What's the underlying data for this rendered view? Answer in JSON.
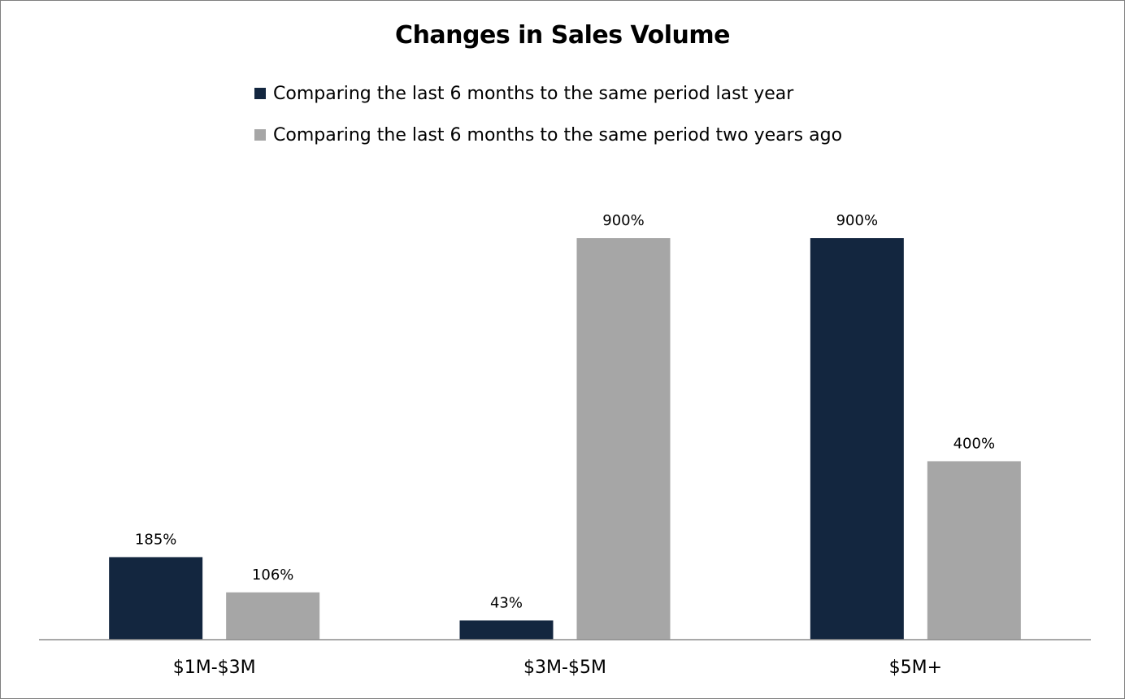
{
  "chart_data": {
    "type": "bar",
    "title": "Changes in Sales Volume",
    "categories": [
      "$1M-$3M",
      "$3M-$5M",
      "$5M+"
    ],
    "series": [
      {
        "name": "Comparing the last 6 months to the same period last year",
        "values": [
          185,
          43,
          900
        ],
        "labels": [
          "185%",
          "43%",
          "900%"
        ],
        "color": "#13263f"
      },
      {
        "name": "Comparing the last 6 months to the same period two years ago",
        "values": [
          106,
          900,
          400
        ],
        "labels": [
          "106%",
          "900%",
          "400%"
        ],
        "color": "#a6a6a6"
      }
    ],
    "xlabel": "",
    "ylabel": "",
    "ylim": [
      0,
      900
    ],
    "grid": false,
    "legend_position": "top"
  }
}
